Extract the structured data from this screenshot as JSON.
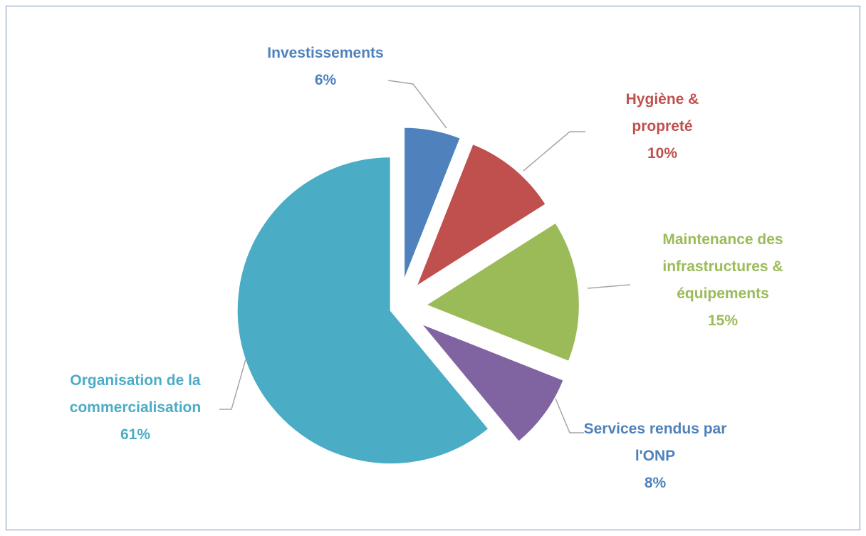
{
  "chart_data": {
    "type": "pie",
    "categories": [
      "Investissements",
      "Hygiène & propreté",
      "Maintenance des infrastructures & équipements",
      "Services rendus par l'ONP",
      "Organisation de la commercialisation"
    ],
    "values": [
      6,
      10,
      15,
      8,
      61
    ],
    "value_labels": [
      "6%",
      "10%",
      "15%",
      "8%",
      "61%"
    ],
    "colors": [
      "#4f81bd",
      "#c0504d",
      "#9bbb59",
      "#8064a2",
      "#4bacc6"
    ]
  }
}
